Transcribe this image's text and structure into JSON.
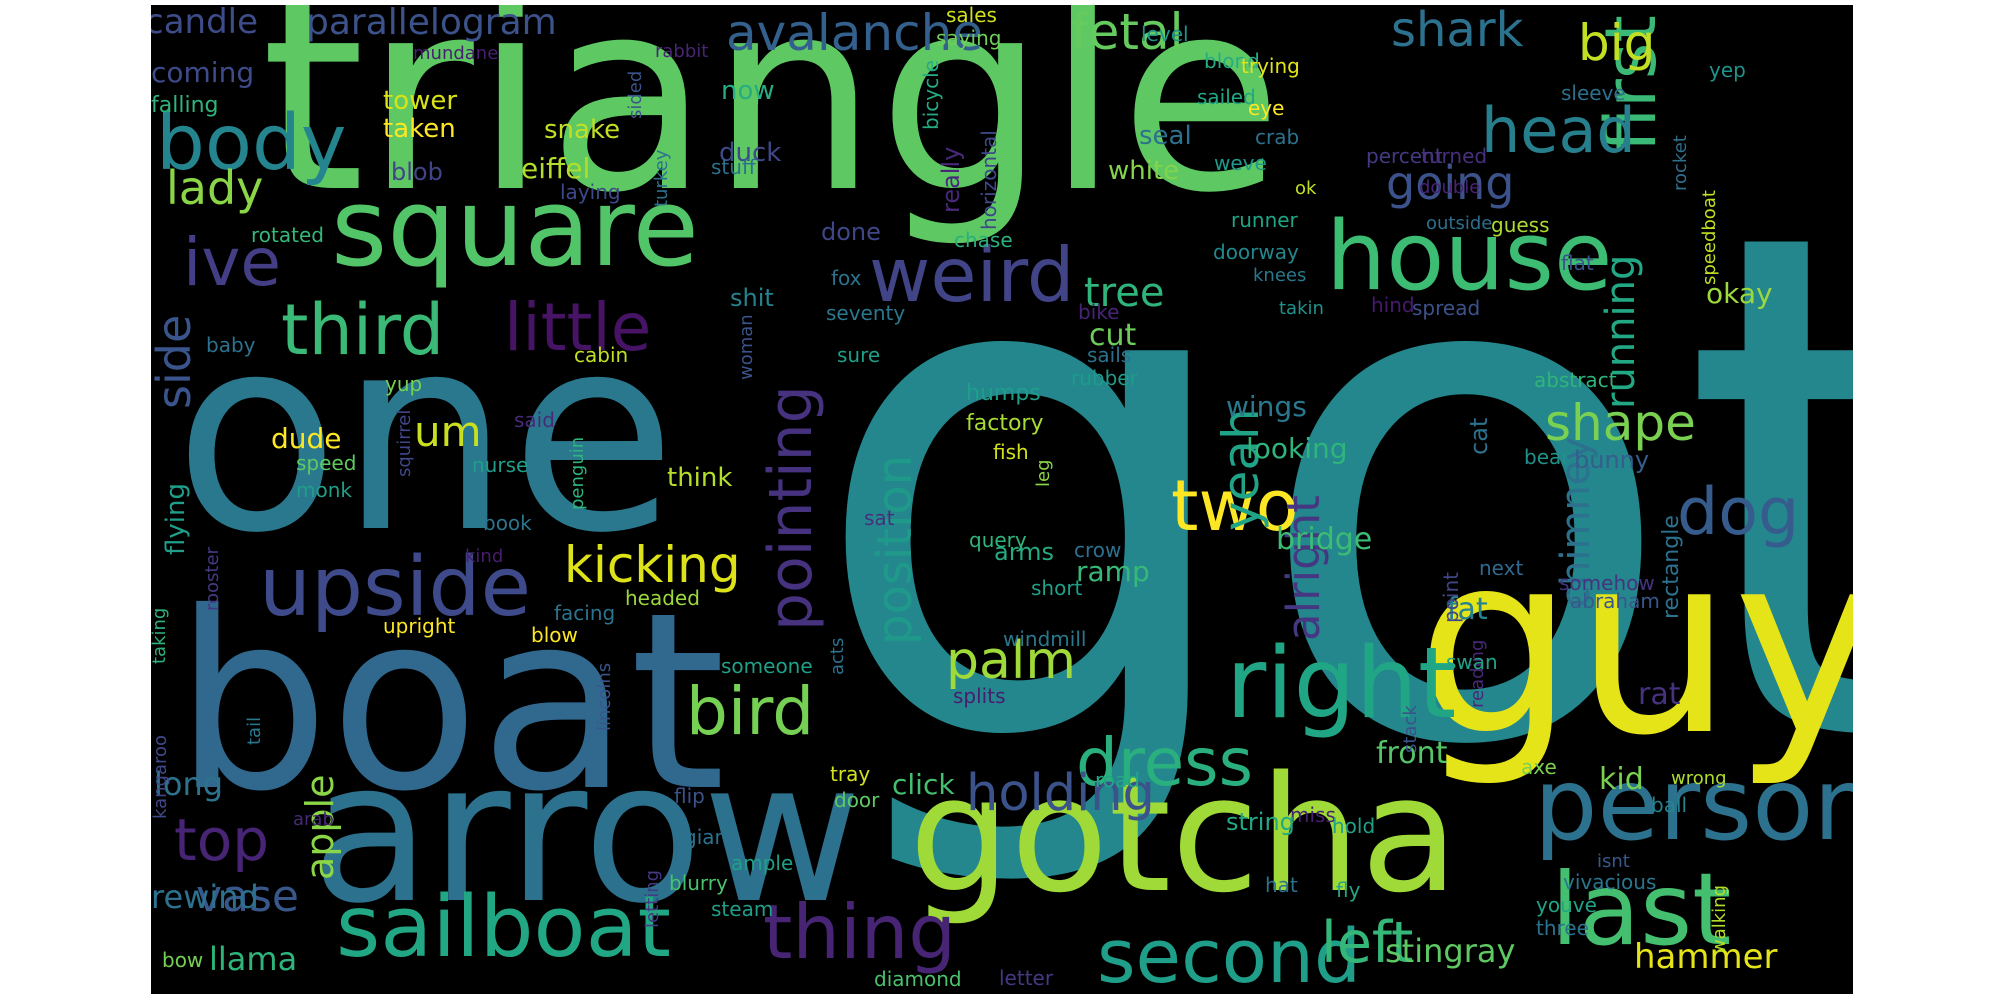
{
  "words": [
    {
      "id": "got",
      "text": "got",
      "color": "#23878d"
    },
    {
      "id": "triangle",
      "text": "triangle",
      "color": "#5ec962"
    },
    {
      "id": "one",
      "text": "one",
      "color": "#2a788e"
    },
    {
      "id": "boat",
      "text": "boat",
      "color": "#31688e"
    },
    {
      "id": "guy",
      "text": "guy",
      "color": "#e5e419"
    },
    {
      "id": "arrow",
      "text": "arrow",
      "color": "#2c718e"
    },
    {
      "id": "gotcha",
      "text": "gotcha",
      "color": "#a0da39"
    },
    {
      "id": "square",
      "text": "square",
      "color": "#52c569"
    },
    {
      "id": "person",
      "text": "person",
      "color": "#2c728e"
    },
    {
      "id": "sailboat",
      "text": "sailboat",
      "color": "#22a785"
    },
    {
      "id": "last",
      "text": "last",
      "color": "#44bf70"
    },
    {
      "id": "house",
      "text": "house",
      "color": "#3dbc74"
    },
    {
      "id": "right",
      "text": "right",
      "color": "#21a685"
    },
    {
      "id": "body",
      "text": "body",
      "color": "#25858e"
    },
    {
      "id": "upside",
      "text": "upside",
      "color": "#3e4a89"
    },
    {
      "id": "weird",
      "text": "weird",
      "color": "#414487"
    },
    {
      "id": "first",
      "text": "first",
      "color": "#3aba76"
    },
    {
      "id": "thing",
      "text": "thing",
      "color": "#482475"
    },
    {
      "id": "second",
      "text": "second",
      "color": "#1f9e89"
    },
    {
      "id": "third",
      "text": "third",
      "color": "#3aba76"
    },
    {
      "id": "little",
      "text": "little",
      "color": "#471365"
    },
    {
      "id": "head",
      "text": "head",
      "color": "#277f8e"
    },
    {
      "id": "dress",
      "text": "dress",
      "color": "#2ab07f"
    },
    {
      "id": "pointing",
      "text": "pointing",
      "color": "#46327e"
    },
    {
      "id": "bird",
      "text": "bird",
      "color": "#75d054"
    },
    {
      "id": "ive",
      "text": "ive",
      "color": "#433e85"
    },
    {
      "id": "dog",
      "text": "dog",
      "color": "#365c8d"
    },
    {
      "id": "two",
      "text": "two",
      "color": "#fde725"
    },
    {
      "id": "yeah",
      "text": "yeah",
      "color": "#20a386"
    },
    {
      "id": "top",
      "text": "top",
      "color": "#482475"
    },
    {
      "id": "left",
      "text": "left",
      "color": "#35b779"
    },
    {
      "id": "holding",
      "text": "holding",
      "color": "#3b528b"
    },
    {
      "id": "kicking",
      "text": "kicking",
      "color": "#dde318"
    },
    {
      "id": "position",
      "text": "position",
      "color": "#1f9a8a"
    },
    {
      "id": "palm",
      "text": "palm",
      "color": "#9fda3a"
    },
    {
      "id": "avalanche",
      "text": "avalanche",
      "color": "#34608d"
    },
    {
      "id": "shark",
      "text": "shark",
      "color": "#2c728e"
    },
    {
      "id": "fetal",
      "text": "fetal",
      "color": "#65cb5e"
    },
    {
      "id": "big",
      "text": "big",
      "color": "#c2df23"
    },
    {
      "id": "side",
      "text": "side",
      "color": "#3a548c"
    },
    {
      "id": "shape",
      "text": "shape",
      "color": "#7ad151"
    },
    {
      "id": "chimney",
      "text": "chimney",
      "color": "#2c718e"
    },
    {
      "id": "alright",
      "text": "alright",
      "color": "#453781"
    },
    {
      "id": "running",
      "text": "running",
      "color": "#22a884"
    },
    {
      "id": "going",
      "text": "going",
      "color": "#3b528b"
    },
    {
      "id": "vase",
      "text": "vase",
      "color": "#38588c"
    },
    {
      "id": "apple",
      "text": "apple",
      "color": "#8bd646"
    },
    {
      "id": "parallelogram",
      "text": "parallelogram",
      "color": "#3b528b"
    },
    {
      "id": "candle",
      "text": "candle",
      "color": "#3e4c8a"
    },
    {
      "id": "lady",
      "text": "lady",
      "color": "#8bd646"
    },
    {
      "id": "tree",
      "text": "tree",
      "color": "#2fb47c"
    },
    {
      "id": "um",
      "text": "um",
      "color": "#c8e020"
    },
    {
      "id": "hammer",
      "text": "hammer",
      "color": "#e5e419"
    },
    {
      "id": "stingray",
      "text": "stingray",
      "color": "#5ec962"
    },
    {
      "id": "llama",
      "text": "llama",
      "color": "#2fb47c"
    },
    {
      "id": "rewind",
      "text": "rewind",
      "color": "#2c728e"
    },
    {
      "id": "long",
      "text": "long",
      "color": "#2c738e"
    },
    {
      "id": "bridge",
      "text": "bridge",
      "color": "#3dbc74"
    },
    {
      "id": "kid",
      "text": "kid",
      "color": "#7ad151"
    },
    {
      "id": "front",
      "text": "front",
      "color": "#54c568"
    },
    {
      "id": "cut",
      "text": "cut",
      "color": "#6ccd5a"
    },
    {
      "id": "fat",
      "text": "fat",
      "color": "#26828e"
    },
    {
      "id": "ramp",
      "text": "ramp",
      "color": "#37b878"
    },
    {
      "id": "okay",
      "text": "okay",
      "color": "#9bd93c"
    },
    {
      "id": "wings",
      "text": "wings",
      "color": "#2a788e"
    },
    {
      "id": "looking",
      "text": "looking",
      "color": "#2fb47c"
    },
    {
      "id": "dude",
      "text": "dude",
      "color": "#fde725"
    },
    {
      "id": "coming",
      "text": "coming",
      "color": "#3e4a89"
    },
    {
      "id": "tower",
      "text": "tower",
      "color": "#d8e219"
    },
    {
      "id": "taken",
      "text": "taken",
      "color": "#fde725"
    },
    {
      "id": "snake",
      "text": "snake",
      "color": "#c2df23"
    },
    {
      "id": "eiffel",
      "text": "eiffel",
      "color": "#b2dd2d"
    },
    {
      "id": "now",
      "text": "now",
      "color": "#26ad81"
    },
    {
      "id": "duck",
      "text": "duck",
      "color": "#3e4989"
    },
    {
      "id": "blob",
      "text": "blob",
      "color": "#414487"
    },
    {
      "id": "seal",
      "text": "seal",
      "color": "#2c718e"
    },
    {
      "id": "white",
      "text": "white",
      "color": "#84d44b"
    },
    {
      "id": "done",
      "text": "done",
      "color": "#3f4788"
    },
    {
      "id": "think",
      "text": "think",
      "color": "#b5de2b"
    },
    {
      "id": "arms",
      "text": "arms",
      "color": "#25ab82"
    },
    {
      "id": "sales",
      "text": "sales",
      "color": "#d0e11c"
    },
    {
      "id": "saying",
      "text": "saying",
      "color": "#6ece58"
    },
    {
      "id": "level",
      "text": "level",
      "color": "#20928c"
    },
    {
      "id": "blond",
      "text": "blond",
      "color": "#27ad81"
    },
    {
      "id": "sailed",
      "text": "sailed",
      "color": "#22a785"
    },
    {
      "id": "trying",
      "text": "trying",
      "color": "#e2e418"
    },
    {
      "id": "yep",
      "text": "yep",
      "color": "#20938c"
    },
    {
      "id": "sleeve",
      "text": "sleeve",
      "color": "#2d708e"
    },
    {
      "id": "eye",
      "text": "eye",
      "color": "#fde725"
    },
    {
      "id": "crab",
      "text": "crab",
      "color": "#2d718e"
    },
    {
      "id": "weve",
      "text": "weve",
      "color": "#1f998a"
    },
    {
      "id": "percent",
      "text": "percent",
      "color": "#443a83"
    },
    {
      "id": "turned",
      "text": "turned",
      "color": "#472f7d"
    },
    {
      "id": "ok",
      "text": "ok",
      "color": "#c2df23"
    },
    {
      "id": "outside",
      "text": "outside",
      "color": "#2d708e"
    },
    {
      "id": "guess",
      "text": "guess",
      "color": "#addc30"
    },
    {
      "id": "double",
      "text": "double",
      "color": "#482475"
    },
    {
      "id": "runner",
      "text": "runner",
      "color": "#20a486"
    },
    {
      "id": "doorway",
      "text": "doorway",
      "color": "#23888e"
    },
    {
      "id": "knees",
      "text": "knees",
      "color": "#2a788e"
    },
    {
      "id": "flat",
      "text": "flat",
      "color": "#3b528b"
    },
    {
      "id": "takin",
      "text": "takin",
      "color": "#20938c"
    },
    {
      "id": "hind",
      "text": "hind",
      "color": "#481a6c"
    },
    {
      "id": "spread",
      "text": "spread",
      "color": "#3b528b"
    },
    {
      "id": "rocket",
      "text": "rocket",
      "color": "#2e6f8e"
    },
    {
      "id": "speedboat",
      "text": "speedboat",
      "color": "#bddf26"
    },
    {
      "id": "abstract",
      "text": "abstract",
      "color": "#2fb47c"
    },
    {
      "id": "bear",
      "text": "bear",
      "color": "#21918c"
    },
    {
      "id": "bunny",
      "text": "bunny",
      "color": "#355e8d"
    },
    {
      "id": "cat",
      "text": "cat",
      "color": "#2c718e"
    },
    {
      "id": "next",
      "text": "next",
      "color": "#31688e"
    },
    {
      "id": "somehow",
      "text": "somehow",
      "color": "#46337f"
    },
    {
      "id": "abraham",
      "text": "abraham",
      "color": "#38588c"
    },
    {
      "id": "rectangle",
      "text": "rectangle",
      "color": "#2c718e"
    },
    {
      "id": "point",
      "text": "point",
      "color": "#404688"
    },
    {
      "id": "reading",
      "text": "reading",
      "color": "#482878"
    },
    {
      "id": "rat",
      "text": "rat",
      "color": "#46327e"
    },
    {
      "id": "axe",
      "text": "axe",
      "color": "#7ad151"
    },
    {
      "id": "ball",
      "text": "ball",
      "color": "#25838e"
    },
    {
      "id": "wrong",
      "text": "wrong",
      "color": "#addc30"
    },
    {
      "id": "walking",
      "text": "walking",
      "color": "#b5de2b"
    },
    {
      "id": "vivacious",
      "text": "vivacious",
      "color": "#2a768e"
    },
    {
      "id": "isnt",
      "text": "isnt",
      "color": "#38588c"
    },
    {
      "id": "youve",
      "text": "youve",
      "color": "#20a386"
    },
    {
      "id": "three",
      "text": "three",
      "color": "#2c738e"
    },
    {
      "id": "stack",
      "text": "stack",
      "color": "#3b528b"
    },
    {
      "id": "miss",
      "text": "miss",
      "color": "#482071"
    },
    {
      "id": "hold",
      "text": "hold",
      "color": "#1fa088"
    },
    {
      "id": "swan",
      "text": "swan",
      "color": "#20a386"
    },
    {
      "id": "fly",
      "text": "fly",
      "color": "#22a785"
    },
    {
      "id": "hat",
      "text": "hat",
      "color": "#2c728e"
    },
    {
      "id": "string",
      "text": "string",
      "color": "#22a884"
    },
    {
      "id": "road",
      "text": "road",
      "color": "#22a785"
    },
    {
      "id": "giant",
      "text": "giant",
      "color": "#2c728e"
    },
    {
      "id": "ample",
      "text": "ample",
      "color": "#1fa088"
    },
    {
      "id": "steam",
      "text": "steam",
      "color": "#1f9e89"
    },
    {
      "id": "blurry",
      "text": "blurry",
      "color": "#4ac16d"
    },
    {
      "id": "letting",
      "text": "letting",
      "color": "#443983"
    },
    {
      "id": "lincolns",
      "text": "lincolns",
      "color": "#39568c"
    },
    {
      "id": "flip",
      "text": "flip",
      "color": "#3b528b"
    },
    {
      "id": "tray",
      "text": "tray",
      "color": "#d2e21b"
    },
    {
      "id": "door",
      "text": "door",
      "color": "#5ec962"
    },
    {
      "id": "click",
      "text": "click",
      "color": "#44bf70"
    },
    {
      "id": "diamond",
      "text": "diamond",
      "color": "#4ac16d"
    },
    {
      "id": "letter",
      "text": "letter",
      "color": "#443983"
    },
    {
      "id": "bow",
      "text": "bow",
      "color": "#75d054"
    },
    {
      "id": "arab",
      "text": "arab",
      "color": "#482878"
    },
    {
      "id": "kangaroo",
      "text": "kangaroo",
      "color": "#3f4788"
    },
    {
      "id": "tail",
      "text": "tail",
      "color": "#2a788e"
    },
    {
      "id": "taking",
      "text": "taking",
      "color": "#2db27d"
    },
    {
      "id": "rooster",
      "text": "rooster",
      "color": "#443983"
    },
    {
      "id": "flying",
      "text": "flying",
      "color": "#1f9e89"
    },
    {
      "id": "speed",
      "text": "speed",
      "color": "#5ec962"
    },
    {
      "id": "monk",
      "text": "monk",
      "color": "#1f9e89"
    },
    {
      "id": "yup",
      "text": "yup",
      "color": "#75d054"
    },
    {
      "id": "squirrel",
      "text": "squirrel",
      "color": "#404688"
    },
    {
      "id": "nurse",
      "text": "nurse",
      "color": "#1f9e89"
    },
    {
      "id": "book",
      "text": "book",
      "color": "#2b758e"
    },
    {
      "id": "kind",
      "text": "kind",
      "color": "#481c6e"
    },
    {
      "id": "said",
      "text": "said",
      "color": "#472a7a"
    },
    {
      "id": "penguin",
      "text": "penguin",
      "color": "#2fb47c"
    },
    {
      "id": "headed",
      "text": "headed",
      "color": "#9bd93c"
    },
    {
      "id": "facing",
      "text": "facing",
      "color": "#2c738e"
    },
    {
      "id": "upright",
      "text": "upright",
      "color": "#fde725"
    },
    {
      "id": "blow",
      "text": "blow",
      "color": "#fde725"
    },
    {
      "id": "ship",
      "text": "ship",
      "color": "#472a7a"
    },
    {
      "id": "someone",
      "text": "someone",
      "color": "#1fa088"
    },
    {
      "id": "acts",
      "text": "acts",
      "color": "#2c718e"
    },
    {
      "id": "splits",
      "text": "splits",
      "color": "#481c6e"
    },
    {
      "id": "windmill",
      "text": "windmill",
      "color": "#2a788e"
    },
    {
      "id": "short",
      "text": "short",
      "color": "#1fa088"
    },
    {
      "id": "crow",
      "text": "crow",
      "color": "#2c718e"
    },
    {
      "id": "query",
      "text": "query",
      "color": "#2fb47c"
    },
    {
      "id": "sat",
      "text": "sat",
      "color": "#472f7d"
    },
    {
      "id": "fish",
      "text": "fish",
      "color": "#d0e11c"
    },
    {
      "id": "factory",
      "text": "factory",
      "color": "#a8db34"
    },
    {
      "id": "humps",
      "text": "humps",
      "color": "#1f9e89"
    },
    {
      "id": "leg",
      "text": "leg",
      "color": "#8bd646"
    },
    {
      "id": "rubber",
      "text": "rubber",
      "color": "#1e9b8a"
    },
    {
      "id": "sails",
      "text": "sails",
      "color": "#2d708e"
    },
    {
      "id": "bike",
      "text": "bike",
      "color": "#482475"
    },
    {
      "id": "seventy",
      "text": "seventy",
      "color": "#2a778e"
    },
    {
      "id": "fox",
      "text": "fox",
      "color": "#2c718e"
    },
    {
      "id": "sure",
      "text": "sure",
      "color": "#1fa088"
    },
    {
      "id": "woman",
      "text": "woman",
      "color": "#3b528b"
    },
    {
      "id": "cabin",
      "text": "cabin",
      "color": "#c2df23"
    },
    {
      "id": "shit",
      "text": "shit",
      "color": "#26828e"
    },
    {
      "id": "chase",
      "text": "chase",
      "color": "#2ab07f"
    },
    {
      "id": "really",
      "text": "really",
      "color": "#482878"
    },
    {
      "id": "horizontal",
      "text": "horizontal",
      "color": "#3e4989"
    },
    {
      "id": "bicycle",
      "text": "bicycle",
      "color": "#25ab82"
    },
    {
      "id": "stuff",
      "text": "stuff",
      "color": "#2d708e"
    },
    {
      "id": "turkey",
      "text": "turkey",
      "color": "#2c728e"
    },
    {
      "id": "sided",
      "text": "sided",
      "color": "#3b528b"
    },
    {
      "id": "rabbit",
      "text": "rabbit",
      "color": "#482475"
    },
    {
      "id": "mundane",
      "text": "mundane",
      "color": "#481f70"
    },
    {
      "id": "laying",
      "text": "laying",
      "color": "#3e4989"
    },
    {
      "id": "falling",
      "text": "falling",
      "color": "#2fb47c"
    },
    {
      "id": "rotated",
      "text": "rotated",
      "color": "#35b779"
    },
    {
      "id": "baby",
      "text": "baby",
      "color": "#2c718e"
    },
    {
      "id": "stingray2",
      "text": "",
      "color": "#000000"
    }
  ]
}
